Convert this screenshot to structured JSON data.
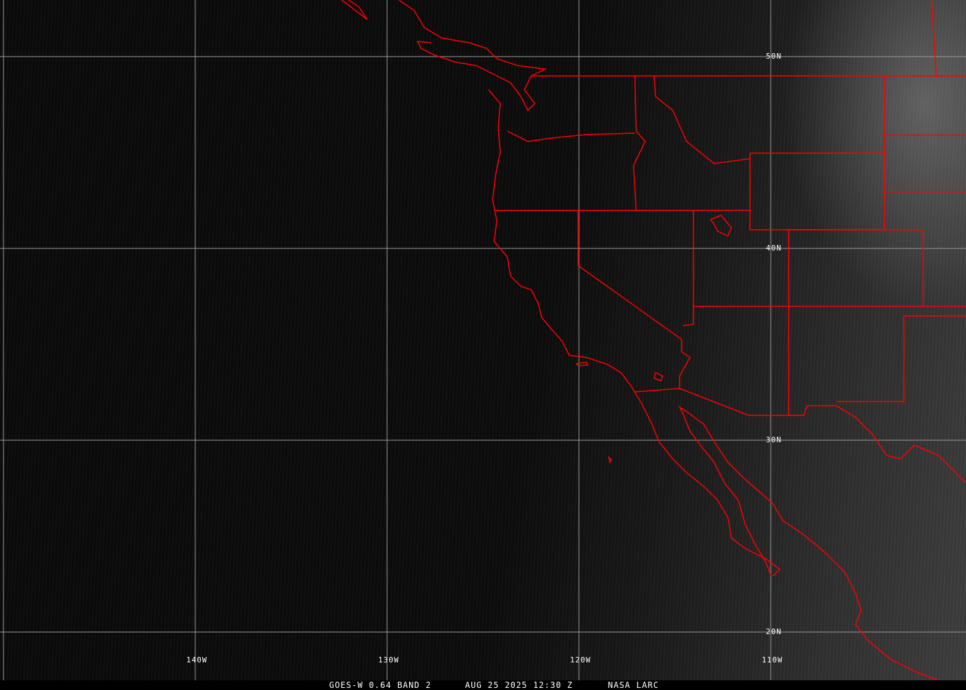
{
  "colors": {
    "boundaries": "#ff0000",
    "grid": "#a0a0a0",
    "text": "#ffffff"
  },
  "lat_labels": [
    "50N",
    "40N",
    "30N",
    "20N"
  ],
  "lon_labels": [
    "140W",
    "130W",
    "120W",
    "110W"
  ],
  "caption": {
    "satellite": "GOES-W 0.64 BAND 2",
    "datetime": "AUG 25 2025 12:30 Z",
    "source": "NASA LARC"
  }
}
